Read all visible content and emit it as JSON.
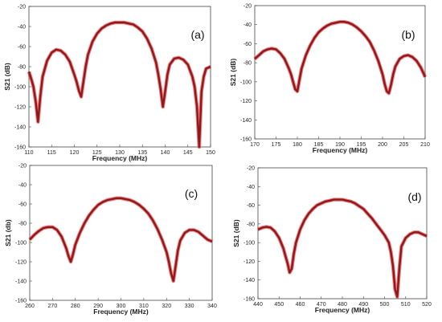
{
  "chart_data": [
    {
      "type": "line",
      "panel_label": "(a)",
      "xlabel": "Frequency (MHz)",
      "ylabel": "S21 (dB)",
      "xlim": [
        110,
        150
      ],
      "ylim": [
        -160,
        -20
      ],
      "xticks": [
        110,
        115,
        120,
        125,
        130,
        135,
        140,
        145,
        150
      ],
      "yticks": [
        -20,
        -40,
        -60,
        -80,
        -100,
        -120,
        -140,
        -160
      ],
      "colors": {
        "curve": "#8b1a1a",
        "glow": "#e8101a"
      },
      "series": [
        {
          "x": [
            110,
            110.5,
            111,
            111.5,
            112,
            112.5,
            113,
            114,
            115,
            116,
            117,
            118,
            119,
            120,
            120.5,
            121,
            121.5,
            122,
            122.5,
            123,
            124,
            125,
            126,
            127,
            128,
            129,
            130,
            131,
            132,
            133,
            134,
            135,
            136,
            137,
            138,
            138.5,
            139,
            139.5,
            140,
            140.5,
            141,
            142,
            143,
            144,
            145,
            146,
            146.5,
            147,
            147.5,
            148,
            148.5,
            149,
            150
          ],
          "y": [
            -85,
            -92,
            -100,
            -115,
            -135,
            -110,
            -90,
            -74,
            -66,
            -63,
            -64,
            -68,
            -75,
            -88,
            -95,
            -104,
            -110,
            -95,
            -80,
            -68,
            -55,
            -47,
            -42,
            -39,
            -37,
            -36,
            -36,
            -36,
            -37,
            -38,
            -41,
            -45,
            -52,
            -62,
            -76,
            -88,
            -102,
            -120,
            -105,
            -88,
            -78,
            -72,
            -71,
            -73,
            -78,
            -90,
            -100,
            -120,
            -160,
            -105,
            -90,
            -82,
            -80
          ]
        }
      ]
    },
    {
      "type": "line",
      "panel_label": "(b)",
      "xlabel": "Frequency (MHz)",
      "ylabel": "S21 (dB)",
      "xlim": [
        170,
        210
      ],
      "ylim": [
        -160,
        -20
      ],
      "xticks": [
        170,
        175,
        180,
        185,
        190,
        195,
        200,
        205,
        210
      ],
      "yticks": [
        -20,
        -40,
        -60,
        -80,
        -100,
        -120,
        -140,
        -160
      ],
      "colors": {
        "curve": "#8b1a1a",
        "glow": "#e8101a"
      },
      "series": [
        {
          "x": [
            170,
            171,
            172,
            173,
            174,
            175,
            176,
            177,
            178,
            178.5,
            179,
            179.5,
            180,
            180.5,
            181,
            182,
            183,
            184,
            185,
            186,
            187,
            188,
            189,
            190,
            191,
            192,
            193,
            194,
            195,
            196,
            197,
            198,
            199,
            200,
            200.5,
            201,
            201.5,
            202,
            202.5,
            203,
            204,
            205,
            206,
            207,
            208,
            209,
            210
          ],
          "y": [
            -76,
            -72,
            -68,
            -66,
            -65,
            -66,
            -70,
            -76,
            -86,
            -92,
            -100,
            -108,
            -110,
            -98,
            -86,
            -72,
            -62,
            -54,
            -48,
            -44,
            -41,
            -39,
            -38,
            -37,
            -37,
            -38,
            -40,
            -43,
            -47,
            -52,
            -58,
            -67,
            -78,
            -92,
            -102,
            -110,
            -112,
            -103,
            -92,
            -84,
            -76,
            -73,
            -72,
            -74,
            -78,
            -85,
            -95
          ]
        }
      ]
    },
    {
      "type": "line",
      "panel_label": "(c)",
      "xlabel": "Frequency (MHz)",
      "ylabel": "S21 (db)",
      "xlim": [
        260,
        340
      ],
      "ylim": [
        -160,
        -20
      ],
      "xticks": [
        260,
        270,
        280,
        290,
        300,
        310,
        320,
        330,
        340
      ],
      "yticks": [
        -20,
        -40,
        -60,
        -80,
        -100,
        -120,
        -140,
        -160
      ],
      "colors": {
        "curve": "#8b1a1a",
        "glow": "#e8101a"
      },
      "series": [
        {
          "x": [
            260,
            262,
            264,
            266,
            268,
            270,
            272,
            274,
            276,
            277,
            278,
            279,
            280,
            282,
            284,
            286,
            288,
            290,
            292,
            294,
            296,
            298,
            300,
            302,
            304,
            306,
            308,
            310,
            312,
            314,
            316,
            318,
            320,
            321,
            322,
            323,
            324,
            325,
            326,
            328,
            330,
            332,
            334,
            336,
            338,
            340
          ],
          "y": [
            -97,
            -92,
            -88,
            -85,
            -84,
            -84,
            -87,
            -94,
            -106,
            -114,
            -120,
            -112,
            -102,
            -90,
            -80,
            -72,
            -66,
            -61,
            -58,
            -56,
            -55,
            -54,
            -54,
            -55,
            -56,
            -58,
            -61,
            -65,
            -70,
            -77,
            -86,
            -97,
            -110,
            -120,
            -132,
            -140,
            -124,
            -108,
            -98,
            -90,
            -87,
            -87,
            -89,
            -93,
            -97,
            -99
          ]
        }
      ]
    },
    {
      "type": "line",
      "panel_label": "(d)",
      "xlabel": "Frequency (MHz)",
      "ylabel": "S21 (dB)",
      "xlim": [
        440,
        520
      ],
      "ylim": [
        -160,
        -20
      ],
      "xticks": [
        440,
        450,
        460,
        470,
        480,
        490,
        500,
        510,
        520
      ],
      "yticks": [
        -20,
        -40,
        -60,
        -80,
        -100,
        -120,
        -140,
        -160
      ],
      "colors": {
        "curve": "#8b1a1a",
        "glow": "#e8101a"
      },
      "series": [
        {
          "x": [
            440,
            442,
            444,
            446,
            448,
            450,
            452,
            453,
            454,
            455,
            456,
            457,
            458,
            460,
            462,
            464,
            466,
            468,
            470,
            472,
            474,
            476,
            478,
            480,
            482,
            484,
            486,
            488,
            490,
            492,
            494,
            496,
            498,
            500,
            502,
            503,
            504,
            505,
            506,
            507,
            508,
            510,
            512,
            514,
            516,
            518,
            520
          ],
          "y": [
            -86,
            -84,
            -83,
            -84,
            -88,
            -95,
            -106,
            -114,
            -122,
            -132,
            -128,
            -112,
            -100,
            -86,
            -76,
            -69,
            -64,
            -60,
            -58,
            -56,
            -55,
            -54,
            -54,
            -54,
            -55,
            -56,
            -58,
            -61,
            -64,
            -69,
            -74,
            -80,
            -86,
            -92,
            -100,
            -110,
            -125,
            -150,
            -158,
            -128,
            -104,
            -95,
            -91,
            -89,
            -89,
            -91,
            -93
          ]
        }
      ]
    }
  ]
}
